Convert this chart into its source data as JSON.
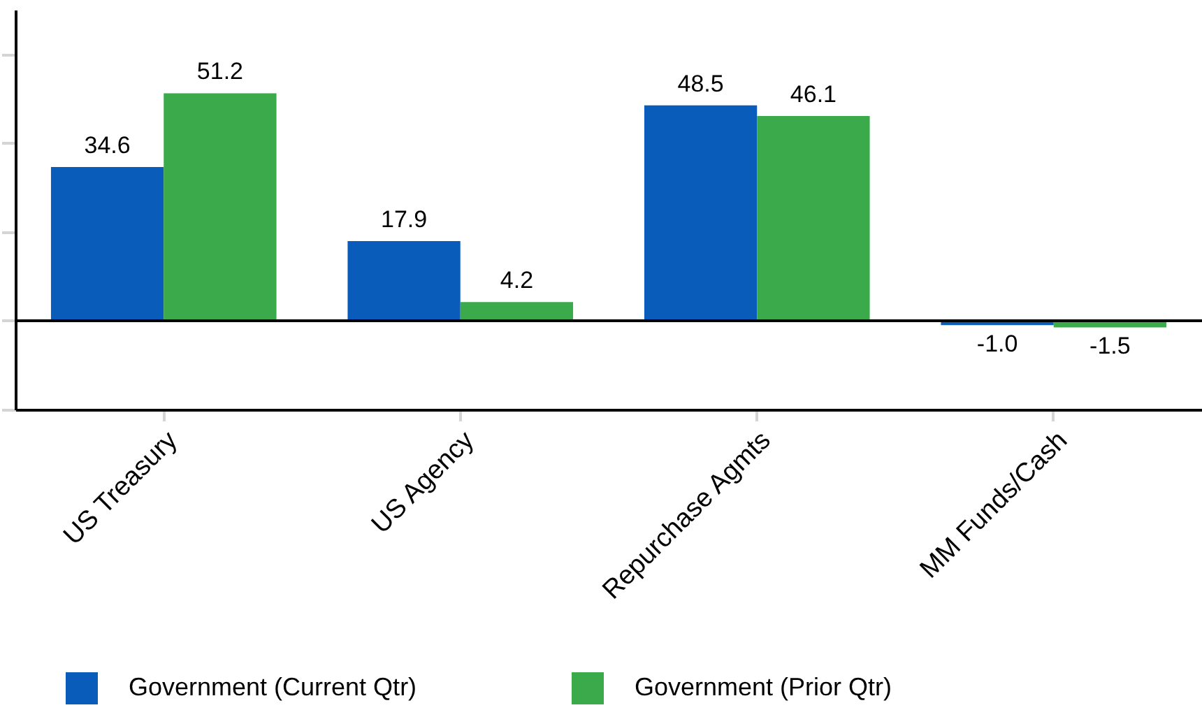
{
  "chart_data": {
    "type": "bar",
    "categories": [
      "US Treasury",
      "US Agency",
      "Repurchase Agmts",
      "MM Funds/Cash"
    ],
    "series": [
      {
        "name": "Government (Current Qtr)",
        "color": "#0a5cbb",
        "values": [
          34.6,
          17.9,
          48.5,
          -1.0
        ],
        "value_labels": [
          "34.6",
          "17.9",
          "48.5",
          "-1.0"
        ]
      },
      {
        "name": "Government (Prior Qtr)",
        "color": "#3aaa4b",
        "values": [
          51.2,
          4.2,
          46.1,
          -1.5
        ],
        "value_labels": [
          "51.2",
          "4.2",
          "46.1",
          "-1.5"
        ]
      }
    ],
    "ylim": [
      -20,
      70
    ],
    "yticks": [
      {
        "value": -20,
        "label": null
      },
      {
        "value": 0,
        "label": null
      },
      {
        "value": 20,
        "label": null
      },
      {
        "value": 40,
        "label": null
      },
      {
        "value": 60,
        "label": null
      }
    ],
    "tick_labels": "x",
    "legend": "bottom",
    "ref_lines": [
      {
        "axis": "y",
        "value": 0,
        "color": "#000000"
      }
    ]
  }
}
